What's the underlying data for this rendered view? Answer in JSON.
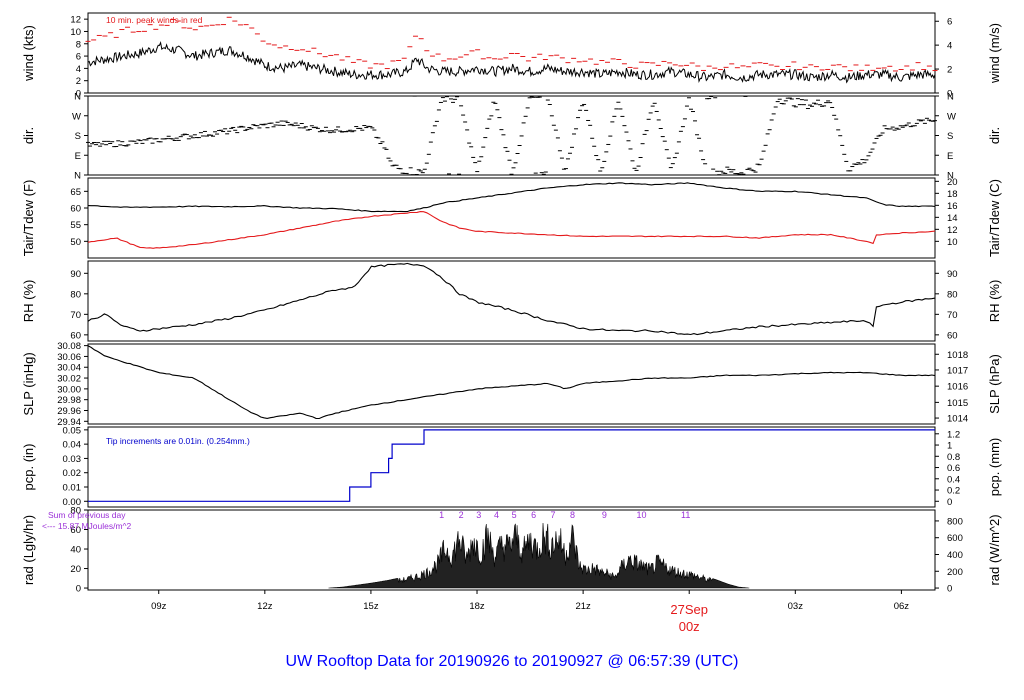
{
  "title": "UW Rooftop Data for 20190926  to  20190927 @ 06:57:39  (UTC)",
  "colors": {
    "axis": "#000000",
    "line": "#000000",
    "red": "#e41a1c",
    "blue": "#0000cc",
    "purple": "#9b30d8",
    "title": "#0000ff",
    "date": "#e41a1c"
  },
  "time_axis": {
    "start_hour": 7.0,
    "end_hour": 30.95,
    "ticks": [
      {
        "h": 9,
        "label": "09z"
      },
      {
        "h": 12,
        "label": "12z"
      },
      {
        "h": 15,
        "label": "15z"
      },
      {
        "h": 18,
        "label": "18z"
      },
      {
        "h": 21,
        "label": "21z"
      },
      {
        "h": 27,
        "label": "03z"
      },
      {
        "h": 30,
        "label": "06z"
      }
    ],
    "date_marker": {
      "h": 24,
      "date": "27Sep",
      "hour": "00z"
    }
  },
  "chart_data": [
    {
      "id": "wind",
      "type": "line",
      "ylabel": "wind (kts)",
      "ylabel_right": "wind (m/s)",
      "ylim": [
        0,
        13
      ],
      "yticks": [
        0,
        2,
        4,
        6,
        8,
        10,
        12
      ],
      "yticks_right": [
        {
          "v": 0,
          "label": "0"
        },
        {
          "v": 3.89,
          "label": "2"
        },
        {
          "v": 7.78,
          "label": "4"
        },
        {
          "v": 11.66,
          "label": "6"
        }
      ],
      "annotation": "10 min. peak winds in red",
      "series": [
        {
          "style": "line",
          "color_key": "line",
          "x": [
            7.0,
            7.5,
            8.0,
            8.5,
            9.0,
            9.5,
            10.0,
            10.5,
            11.0,
            11.5,
            12.0,
            12.5,
            13.0,
            13.5,
            14.0,
            14.5,
            15.0,
            15.5,
            16.0,
            16.3,
            16.6,
            17.0,
            17.5,
            18.0,
            18.5,
            19.0,
            19.5,
            20.0,
            20.5,
            21.0,
            21.5,
            22.0,
            22.5,
            23.0,
            23.5,
            24.0,
            24.5,
            25.0,
            25.5,
            26.0,
            26.5,
            27.0,
            27.5,
            28.0,
            28.5,
            29.0,
            29.5,
            30.0,
            30.5,
            30.95
          ],
          "y": [
            5.0,
            5.5,
            6.0,
            6.5,
            7.5,
            7.0,
            6.0,
            6.5,
            7.0,
            6.0,
            4.5,
            4.0,
            4.5,
            4.0,
            3.5,
            3.0,
            3.0,
            3.0,
            3.5,
            5.5,
            4.0,
            3.5,
            3.5,
            4.0,
            3.5,
            4.0,
            3.5,
            4.0,
            3.5,
            3.5,
            3.0,
            3.5,
            3.0,
            3.0,
            3.5,
            3.0,
            2.5,
            3.0,
            2.5,
            3.0,
            3.0,
            3.0,
            2.5,
            3.0,
            2.5,
            3.0,
            3.0,
            2.5,
            3.0,
            3.0
          ]
        },
        {
          "style": "dash",
          "color_key": "red",
          "x": [
            7.0,
            7.5,
            8.0,
            8.5,
            9.0,
            9.5,
            10.0,
            10.5,
            11.0,
            11.5,
            12.0,
            12.5,
            13.0,
            13.5,
            14.0,
            14.5,
            15.0,
            15.5,
            16.0,
            16.3,
            16.6,
            17.0,
            17.5,
            18.0,
            18.5,
            19.0,
            19.5,
            20.0,
            20.5,
            21.0,
            21.5,
            22.0,
            22.5,
            23.0,
            23.5,
            24.0,
            24.5,
            25.0,
            25.5,
            26.0,
            26.5,
            27.0,
            27.5,
            28.0,
            28.5,
            29.0,
            29.5,
            30.0,
            30.5,
            30.95
          ],
          "y": [
            8.5,
            9.0,
            10.0,
            10.5,
            11.0,
            11.5,
            10.5,
            11.0,
            12.0,
            11.0,
            8.5,
            7.5,
            7.5,
            6.5,
            6.0,
            5.0,
            4.5,
            4.5,
            5.5,
            10.0,
            7.0,
            5.5,
            6.0,
            6.5,
            5.5,
            6.5,
            5.5,
            6.0,
            5.5,
            5.5,
            5.0,
            5.0,
            4.5,
            4.5,
            5.0,
            4.5,
            4.0,
            4.5,
            4.0,
            4.5,
            4.0,
            4.5,
            4.0,
            4.5,
            4.0,
            4.0,
            4.5,
            4.0,
            4.5,
            4.0
          ]
        }
      ]
    },
    {
      "id": "dir",
      "type": "scatter",
      "ylabel": "dir.",
      "ylabel_right": "dir.",
      "ylim": [
        0,
        360
      ],
      "yticks": [
        {
          "v": 0,
          "label": "N"
        },
        {
          "v": 90,
          "label": "E"
        },
        {
          "v": 180,
          "label": "S"
        },
        {
          "v": 270,
          "label": "W"
        },
        {
          "v": 360,
          "label": "N"
        }
      ],
      "yticks_right": [
        {
          "v": 0,
          "label": "N"
        },
        {
          "v": 90,
          "label": "E"
        },
        {
          "v": 180,
          "label": "S"
        },
        {
          "v": 270,
          "label": "W"
        },
        {
          "v": 360,
          "label": "N"
        }
      ],
      "series": [
        {
          "style": "marks",
          "color_key": "line",
          "x": [
            7.0,
            7.5,
            8.0,
            8.5,
            9.0,
            9.5,
            10.0,
            10.5,
            11.0,
            11.5,
            12.0,
            12.5,
            13.0,
            13.5,
            14.0,
            14.5,
            15.0,
            15.4,
            15.6,
            16.0,
            16.5,
            17.0,
            17.5,
            18.0,
            18.5,
            19.0,
            19.5,
            20.0,
            20.5,
            21.0,
            21.5,
            22.0,
            22.5,
            23.0,
            23.5,
            24.0,
            24.5,
            25.0,
            25.5,
            26.0,
            26.5,
            27.0,
            27.5,
            28.0,
            28.5,
            29.0,
            29.5,
            30.0,
            30.5,
            30.95
          ],
          "y": [
            135,
            140,
            145,
            150,
            160,
            170,
            180,
            190,
            200,
            215,
            225,
            235,
            225,
            210,
            205,
            210,
            215,
            120,
            40,
            20,
            10,
            350,
            345,
            10,
            345,
            5,
            350,
            355,
            15,
            350,
            10,
            345,
            5,
            355,
            10,
            350,
            5,
            20,
            10,
            40,
            350,
            330,
            320,
            340,
            30,
            70,
            210,
            220,
            240,
            250
          ]
        }
      ]
    },
    {
      "id": "temp",
      "type": "line",
      "ylabel": "Tair/Tdew (F)",
      "ylabel_right": "Tair/Tdew (C)",
      "ylim": [
        45,
        69
      ],
      "yticks": [
        50,
        55,
        60,
        65
      ],
      "yticks_right": [
        {
          "v": 50,
          "label": "10"
        },
        {
          "v": 53.6,
          "label": "12"
        },
        {
          "v": 57.2,
          "label": "14"
        },
        {
          "v": 60.8,
          "label": "16"
        },
        {
          "v": 64.4,
          "label": "18"
        },
        {
          "v": 68,
          "label": "20"
        }
      ],
      "series": [
        {
          "style": "line",
          "color_key": "line",
          "x": [
            7.0,
            8.0,
            9.0,
            10.0,
            11.0,
            12.0,
            13.0,
            14.0,
            15.0,
            16.0,
            16.5,
            17.0,
            18.0,
            19.0,
            20.0,
            21.0,
            22.0,
            23.0,
            24.0,
            25.0,
            26.0,
            27.0,
            28.0,
            29.0,
            29.5,
            30.0,
            30.95
          ],
          "y": [
            60.8,
            60.2,
            60.3,
            60.5,
            60.4,
            60.6,
            60.0,
            59.8,
            59.0,
            59.0,
            60.0,
            61.5,
            63.0,
            64.5,
            66.0,
            67.0,
            67.5,
            67.0,
            67.5,
            66.0,
            65.0,
            65.0,
            64.0,
            63.0,
            61.0,
            60.5,
            60.5
          ]
        },
        {
          "style": "line",
          "color_key": "red",
          "x": [
            7.0,
            7.8,
            8.5,
            9.0,
            10.0,
            11.0,
            12.0,
            13.0,
            14.0,
            15.0,
            16.0,
            16.5,
            17.0,
            17.5,
            18.0,
            19.0,
            20.0,
            21.0,
            22.0,
            23.0,
            24.0,
            25.0,
            26.0,
            27.0,
            28.0,
            29.0,
            29.2,
            29.3,
            30.0,
            30.95
          ],
          "y": [
            49.8,
            51.0,
            48.0,
            48.0,
            49.0,
            50.5,
            52.0,
            54.0,
            56.0,
            57.5,
            58.5,
            59.0,
            56.0,
            54.0,
            53.0,
            52.5,
            52.0,
            51.5,
            51.5,
            51.5,
            51.5,
            51.5,
            51.0,
            52.0,
            52.0,
            50.0,
            49.5,
            52.0,
            52.5,
            53.0
          ]
        }
      ]
    },
    {
      "id": "rh",
      "type": "line",
      "ylabel": "RH (%)",
      "ylabel_right": "RH (%)",
      "ylim": [
        57,
        96
      ],
      "yticks": [
        60,
        70,
        80,
        90
      ],
      "yticks_right": [
        {
          "v": 60,
          "label": "60"
        },
        {
          "v": 70,
          "label": "70"
        },
        {
          "v": 80,
          "label": "80"
        },
        {
          "v": 90,
          "label": "90"
        }
      ],
      "series": [
        {
          "style": "line",
          "color_key": "line",
          "x": [
            7.0,
            7.5,
            8.0,
            8.5,
            9.0,
            10.0,
            11.0,
            12.0,
            13.0,
            14.0,
            14.5,
            15.0,
            15.5,
            16.0,
            16.5,
            17.0,
            17.5,
            18.0,
            19.0,
            20.0,
            21.0,
            22.0,
            23.0,
            24.0,
            25.0,
            26.0,
            27.0,
            28.0,
            29.0,
            29.2,
            29.3,
            30.0,
            30.95
          ],
          "y": [
            67.0,
            70.0,
            64.0,
            62.0,
            63.0,
            65.0,
            68.0,
            72.0,
            77.0,
            82.0,
            83.0,
            93.0,
            94.0,
            94.5,
            94.0,
            88.0,
            80.0,
            76.0,
            72.0,
            67.0,
            63.0,
            62.0,
            62.0,
            60.0,
            62.0,
            64.0,
            65.0,
            66.0,
            67.0,
            64.0,
            74.0,
            76.0,
            78.0
          ]
        }
      ]
    },
    {
      "id": "slp",
      "type": "line",
      "ylabel": "SLP (inHg)",
      "ylabel_right": "SLP (hPa)",
      "ylim": [
        29.935,
        30.083
      ],
      "yticks": [
        29.94,
        29.96,
        29.98,
        30.0,
        30.02,
        30.04,
        30.06,
        30.08
      ],
      "yticks_right": [
        {
          "v": 29.946,
          "label": "1014"
        },
        {
          "v": 29.975,
          "label": "1015"
        },
        {
          "v": 30.005,
          "label": "1016"
        },
        {
          "v": 30.035,
          "label": "1017"
        },
        {
          "v": 30.064,
          "label": "1018"
        }
      ],
      "series": [
        {
          "style": "line",
          "color_key": "line",
          "x": [
            7.0,
            7.5,
            8.0,
            9.0,
            10.0,
            10.5,
            11.0,
            11.5,
            12.0,
            12.5,
            13.0,
            13.5,
            14.0,
            15.0,
            16.0,
            17.0,
            18.0,
            19.0,
            20.0,
            20.5,
            21.0,
            22.0,
            23.0,
            24.0,
            25.0,
            26.0,
            27.0,
            28.0,
            29.0,
            30.0,
            30.95
          ],
          "y": [
            30.08,
            30.06,
            30.05,
            30.03,
            30.02,
            30.0,
            29.98,
            29.96,
            29.945,
            29.95,
            29.955,
            29.945,
            29.955,
            29.97,
            29.98,
            29.99,
            30.0,
            30.005,
            30.01,
            30.0,
            30.01,
            30.015,
            30.02,
            30.02,
            30.025,
            30.025,
            30.028,
            30.03,
            30.03,
            30.025,
            30.025
          ]
        }
      ]
    },
    {
      "id": "pcp",
      "type": "line",
      "ylabel": "pcp. (in)",
      "ylabel_right": "pcp. (mm)",
      "ylim": [
        -0.004,
        0.052
      ],
      "yticks": [
        0.0,
        0.01,
        0.02,
        0.03,
        0.04,
        0.05
      ],
      "yticks_right": [
        {
          "v": 0,
          "label": "0"
        },
        {
          "v": 0.00787,
          "label": "0.2"
        },
        {
          "v": 0.01575,
          "label": "0.4"
        },
        {
          "v": 0.02362,
          "label": "0.6"
        },
        {
          "v": 0.0315,
          "label": "0.8"
        },
        {
          "v": 0.03937,
          "label": "1"
        },
        {
          "v": 0.04724,
          "label": "1.2"
        }
      ],
      "annotation": "Tip increments are 0.01in. (0.254mm.)",
      "series": [
        {
          "style": "step",
          "color_key": "blue",
          "x": [
            7.0,
            14.4,
            14.4,
            15.0,
            15.0,
            15.5,
            15.5,
            15.6,
            15.6,
            16.5,
            16.5,
            30.95
          ],
          "y": [
            0.0,
            0.0,
            0.01,
            0.01,
            0.02,
            0.02,
            0.03,
            0.03,
            0.04,
            0.04,
            0.05,
            0.05
          ]
        }
      ]
    },
    {
      "id": "rad",
      "type": "area",
      "ylabel": "rad (Lgly/hr)",
      "ylabel_right": "rad (W/m^2)",
      "ylim": [
        -2,
        80
      ],
      "yticks": [
        0,
        20,
        40,
        60,
        80
      ],
      "yticks_right": [
        {
          "v": 0,
          "label": "0"
        },
        {
          "v": 17.2,
          "label": "200"
        },
        {
          "v": 34.4,
          "label": "400"
        },
        {
          "v": 51.6,
          "label": "600"
        },
        {
          "v": 68.8,
          "label": "800"
        }
      ],
      "annotation_line1": "Sum of previous day",
      "annotation_line2": "<--- 15.87 MJoules/m^2",
      "hour_marks": [
        {
          "h": 17.0,
          "label": "1"
        },
        {
          "h": 17.55,
          "label": "2"
        },
        {
          "h": 18.05,
          "label": "3"
        },
        {
          "h": 18.55,
          "label": "4"
        },
        {
          "h": 19.05,
          "label": "5"
        },
        {
          "h": 19.6,
          "label": "6"
        },
        {
          "h": 20.15,
          "label": "7"
        },
        {
          "h": 20.7,
          "label": "8"
        },
        {
          "h": 21.6,
          "label": "9"
        },
        {
          "h": 22.65,
          "label": "10"
        },
        {
          "h": 23.9,
          "label": "11"
        }
      ],
      "series": [
        {
          "style": "area",
          "color_key": "line",
          "x": [
            13.8,
            14.2,
            14.6,
            15.0,
            15.5,
            16.0,
            16.3,
            16.6,
            16.9,
            17.1,
            17.3,
            17.5,
            17.7,
            17.9,
            18.1,
            18.3,
            18.5,
            18.7,
            18.9,
            19.1,
            19.3,
            19.5,
            19.7,
            19.9,
            20.1,
            20.3,
            20.5,
            20.7,
            20.9,
            21.1,
            21.3,
            21.5,
            21.7,
            21.9,
            22.1,
            22.3,
            22.5,
            22.7,
            22.9,
            23.1,
            23.3,
            23.5,
            23.7,
            23.9,
            24.1,
            24.3,
            24.5,
            24.8,
            25.1,
            25.4,
            25.7
          ],
          "y": [
            0,
            1,
            3,
            5,
            8,
            12,
            16,
            22,
            35,
            55,
            45,
            70,
            40,
            68,
            50,
            72,
            45,
            60,
            58,
            72,
            50,
            68,
            55,
            74,
            60,
            70,
            48,
            72,
            30,
            25,
            28,
            22,
            20,
            15,
            30,
            40,
            35,
            30,
            25,
            35,
            30,
            25,
            22,
            20,
            18,
            15,
            12,
            8,
            4,
            1,
            0
          ]
        }
      ]
    }
  ]
}
